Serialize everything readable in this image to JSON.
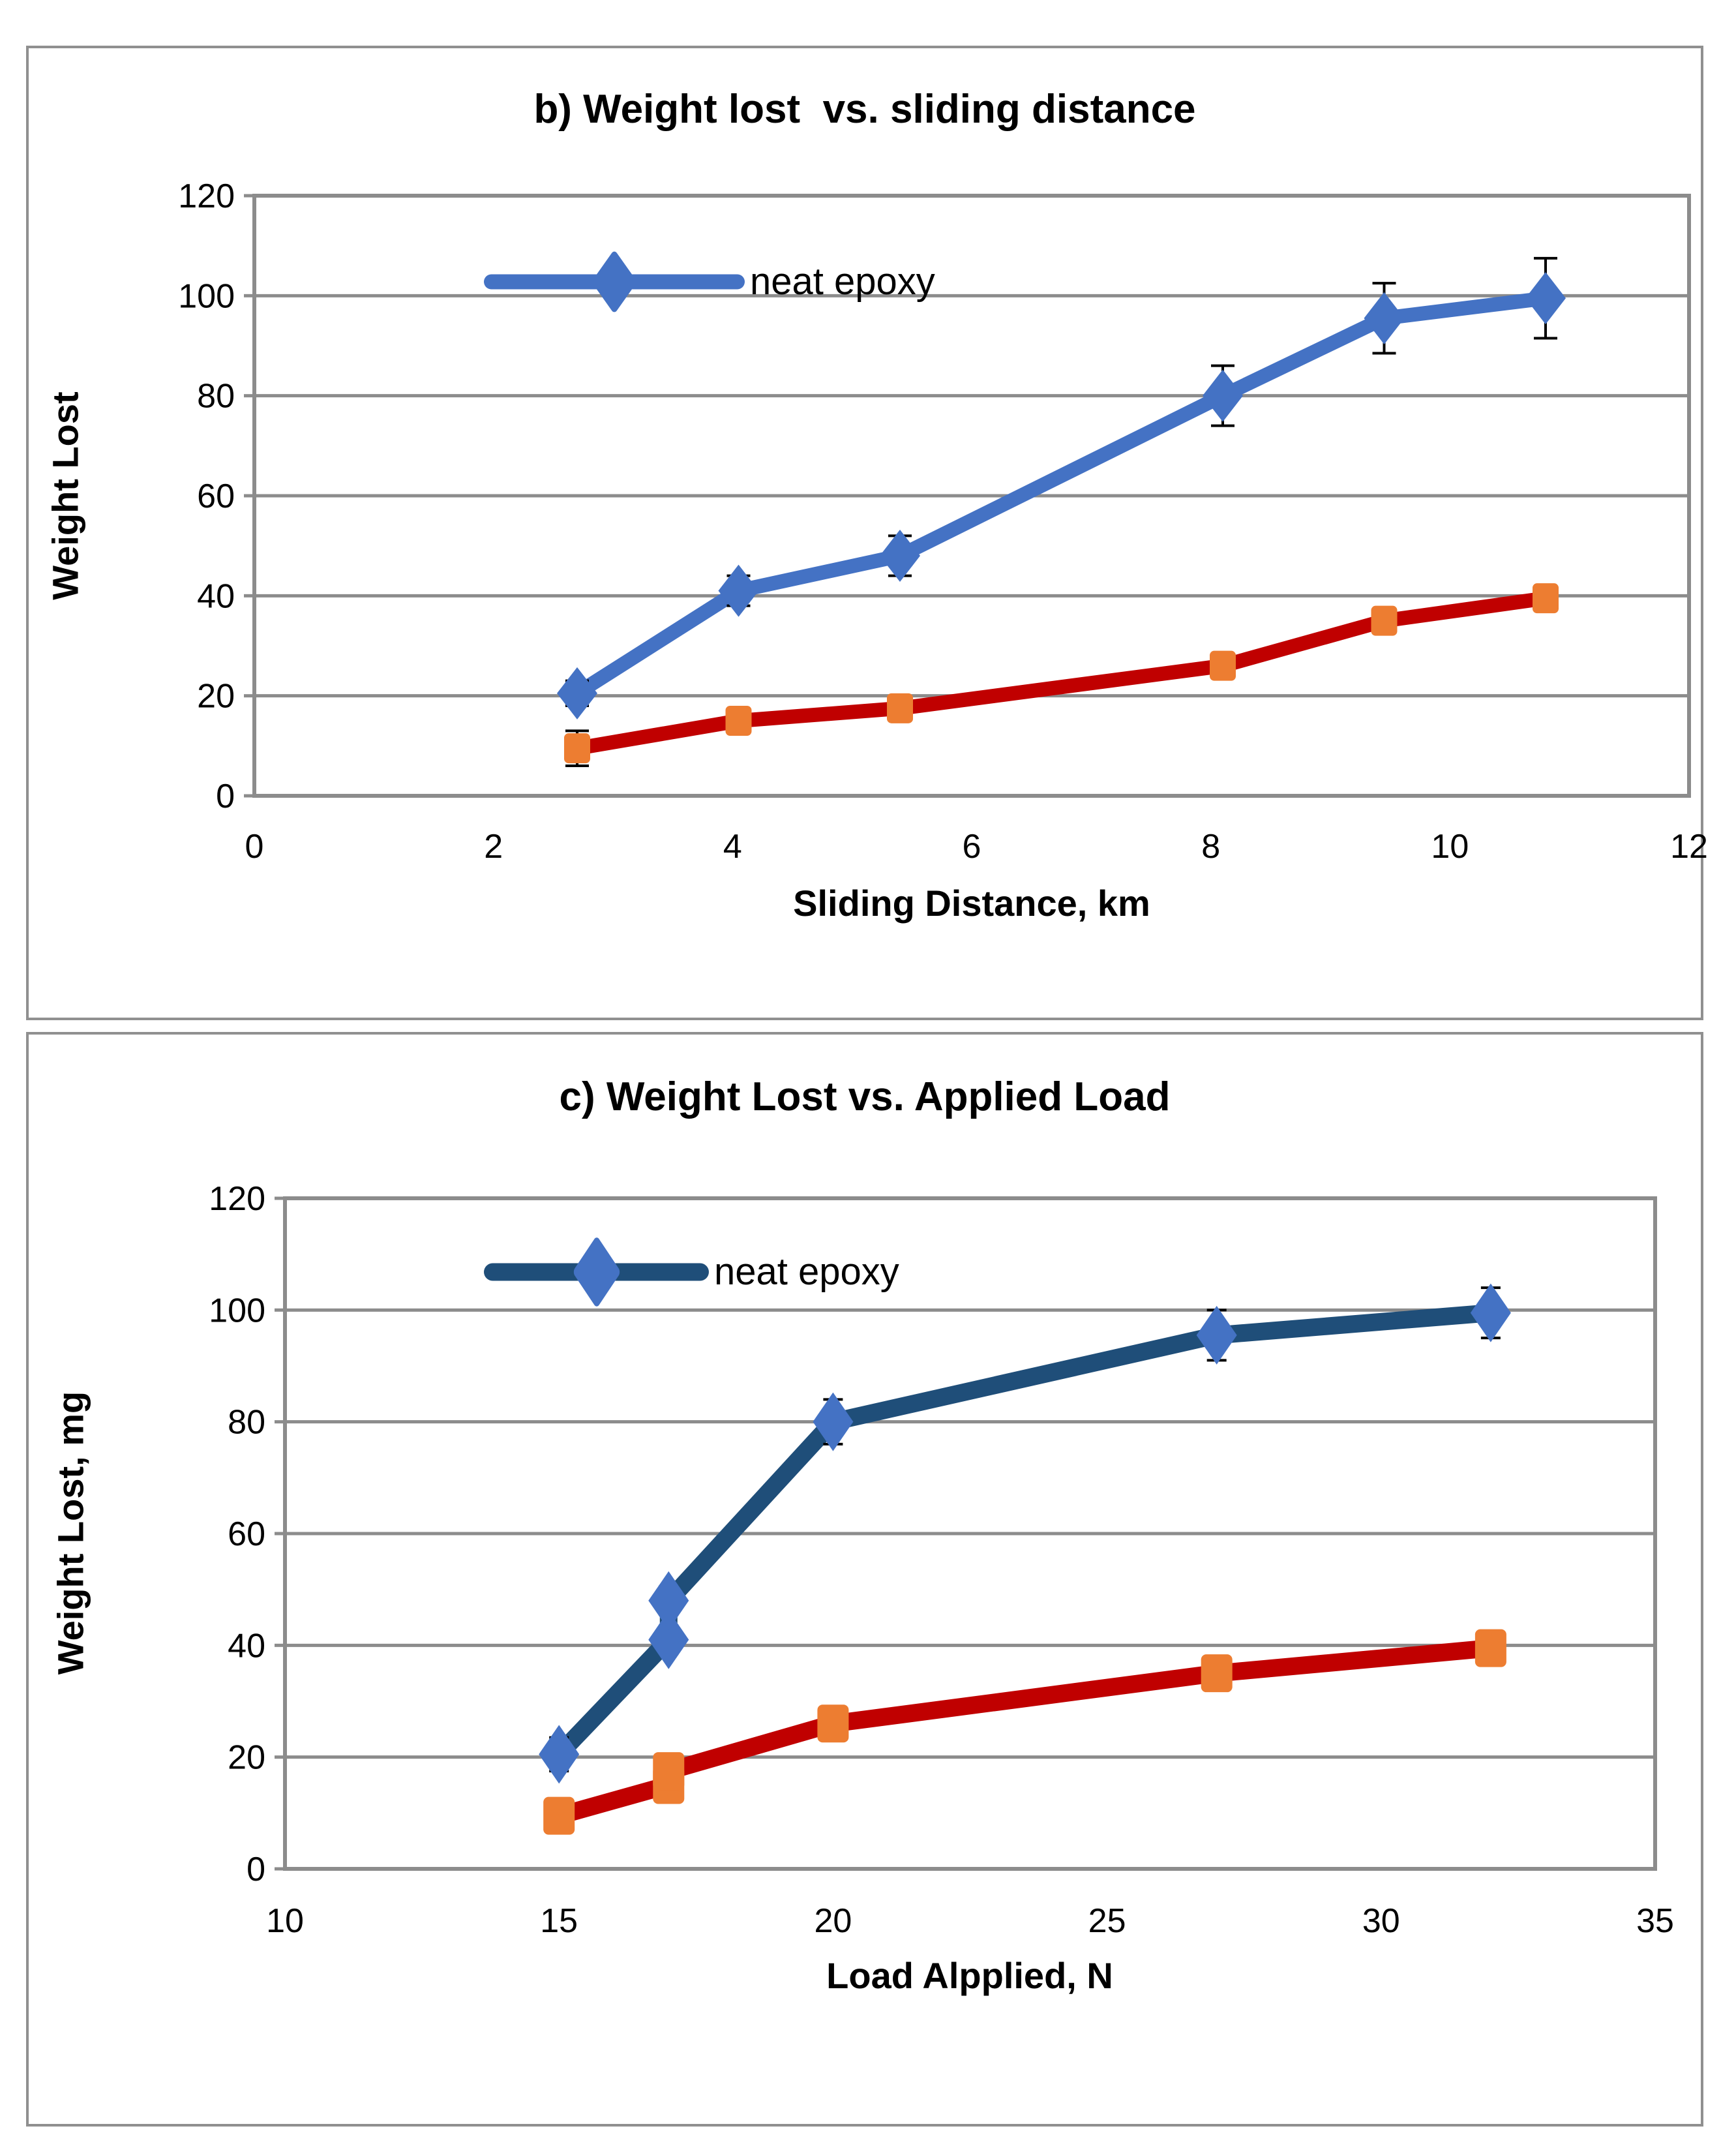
{
  "page": {
    "background": "#ffffff",
    "panel_border_color": "#909090",
    "grid_color": "#8C8C8C",
    "error_bar_color": "#000000"
  },
  "chart_data": [
    {
      "id": "chart-b",
      "type": "line",
      "title": "b) Weight lost  vs. sliding distance",
      "xlabel": "Sliding Distance, km",
      "ylabel": "Weight Lost",
      "xlim": [
        0,
        12
      ],
      "ylim": [
        0,
        120
      ],
      "xticks": [
        0,
        2,
        4,
        6,
        8,
        10,
        12
      ],
      "yticks": [
        0,
        20,
        40,
        60,
        80,
        100,
        120
      ],
      "grid": "horizontal",
      "legend": {
        "label": "neat epoxy",
        "position": "top-left-inside"
      },
      "series": [
        {
          "legend_label": "neat epoxy",
          "line_color": "#4472C4",
          "marker": "diamond",
          "marker_color": "#4472C4",
          "x": [
            2.7,
            4.05,
            5.4,
            8.1,
            9.45,
            10.8
          ],
          "y": [
            20.5,
            41,
            48,
            80,
            95.5,
            99.5
          ],
          "yerr": [
            2.5,
            3,
            4,
            6,
            7,
            8
          ]
        },
        {
          "legend_label": "",
          "line_color": "#C00000",
          "marker": "square",
          "marker_color": "#ED7D31",
          "x": [
            2.7,
            4.05,
            5.4,
            8.1,
            9.45,
            10.8
          ],
          "y": [
            9.5,
            15,
            17.5,
            26,
            35,
            39.5
          ],
          "yerr": [
            3.5,
            0,
            0,
            0,
            0,
            0
          ]
        }
      ]
    },
    {
      "id": "chart-c",
      "type": "line",
      "title": "c) Weight Lost vs. Applied Load",
      "xlabel": "Load Alpplied, N",
      "ylabel": "Weight Lost, mg",
      "xlim": [
        10,
        35
      ],
      "ylim": [
        0,
        120
      ],
      "xticks": [
        10,
        15,
        20,
        25,
        30,
        35
      ],
      "yticks": [
        0,
        20,
        40,
        60,
        80,
        100,
        120
      ],
      "grid": "horizontal",
      "legend": {
        "label": "neat epoxy",
        "position": "top-left-inside"
      },
      "series": [
        {
          "legend_label": "neat epoxy",
          "line_color": "#1F4E79",
          "marker": "diamond",
          "marker_color": "#4472C4",
          "x": [
            15,
            17,
            17,
            20,
            27,
            32
          ],
          "y": [
            20.5,
            41,
            48,
            80,
            95.5,
            99.5
          ],
          "yerr": [
            3,
            2.5,
            2.5,
            4,
            4.5,
            4.5
          ]
        },
        {
          "legend_label": "",
          "line_color": "#C00000",
          "marker": "square",
          "marker_color": "#ED7D31",
          "x": [
            15,
            17,
            17,
            20,
            27,
            32
          ],
          "y": [
            9.5,
            15,
            17.5,
            26,
            35,
            39.5
          ],
          "yerr": [
            0,
            0,
            0,
            0,
            0,
            0
          ]
        }
      ]
    }
  ]
}
